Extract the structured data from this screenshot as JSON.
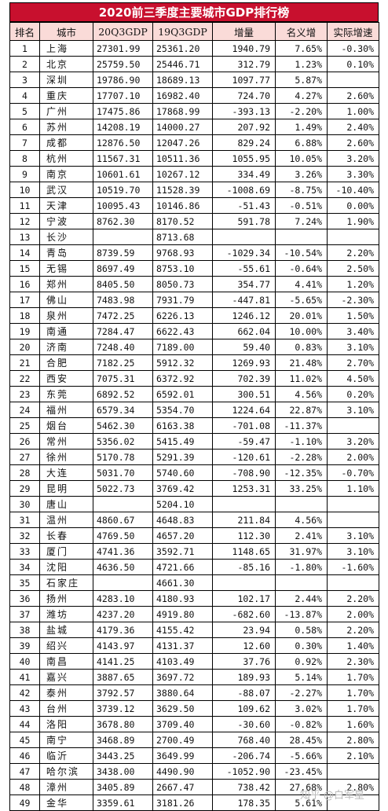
{
  "title": "2020前三季度主要城市GDP排行榜",
  "headers": [
    "排名",
    "城市",
    "20Q3GDP",
    "19Q3GDP",
    "增量",
    "名义增",
    "实际增速"
  ],
  "rows": [
    [
      "1",
      "上海",
      "27301.99",
      "25361.20",
      "1940.79",
      "7.65%",
      "-0.30%"
    ],
    [
      "2",
      "北京",
      "25759.50",
      "25446.71",
      "312.79",
      "1.23%",
      "0.10%"
    ],
    [
      "3",
      "深圳",
      "19786.90",
      "18689.13",
      "1097.77",
      "5.87%",
      ""
    ],
    [
      "4",
      "重庆",
      "17707.10",
      "16982.40",
      "724.70",
      "4.27%",
      "2.60%"
    ],
    [
      "5",
      "广州",
      "17475.86",
      "17868.99",
      "-393.13",
      "-2.20%",
      "1.00%"
    ],
    [
      "6",
      "苏州",
      "14208.19",
      "14000.27",
      "207.92",
      "1.49%",
      "2.40%"
    ],
    [
      "7",
      "成都",
      "12876.50",
      "12047.26",
      "829.24",
      "6.88%",
      "2.60%"
    ],
    [
      "8",
      "杭州",
      "11567.31",
      "10511.36",
      "1055.95",
      "10.05%",
      "3.20%"
    ],
    [
      "9",
      "南京",
      "10601.61",
      "10267.12",
      "334.49",
      "3.26%",
      "3.30%"
    ],
    [
      "10",
      "武汉",
      "10519.70",
      "11528.39",
      "-1008.69",
      "-8.75%",
      "-10.40%"
    ],
    [
      "11",
      "天津",
      "10095.43",
      "10146.86",
      "-51.43",
      "-0.51%",
      "0.00%"
    ],
    [
      "12",
      "宁波",
      "8762.30",
      "8170.52",
      "591.78",
      "7.24%",
      "1.90%"
    ],
    [
      "13",
      "长沙",
      "",
      "8713.68",
      "",
      "",
      ""
    ],
    [
      "14",
      "青岛",
      "8739.59",
      "9768.93",
      "-1029.34",
      "-10.54%",
      "2.20%"
    ],
    [
      "15",
      "无锡",
      "8697.49",
      "8753.10",
      "-55.61",
      "-0.64%",
      "2.50%"
    ],
    [
      "16",
      "郑州",
      "8405.50",
      "8050.73",
      "354.77",
      "4.41%",
      "1.20%"
    ],
    [
      "17",
      "佛山",
      "7483.98",
      "7931.79",
      "-447.81",
      "-5.65%",
      "-2.30%"
    ],
    [
      "18",
      "泉州",
      "7472.25",
      "6226.13",
      "1246.12",
      "20.01%",
      "1.50%"
    ],
    [
      "19",
      "南通",
      "7284.47",
      "6622.43",
      "662.04",
      "10.00%",
      "3.40%"
    ],
    [
      "20",
      "济南",
      "7248.40",
      "7189.00",
      "59.40",
      "0.83%",
      "3.10%"
    ],
    [
      "21",
      "合肥",
      "7182.25",
      "5912.32",
      "1269.93",
      "21.48%",
      "2.70%"
    ],
    [
      "22",
      "西安",
      "7075.31",
      "6372.92",
      "702.39",
      "11.02%",
      "4.50%"
    ],
    [
      "23",
      "东莞",
      "6892.52",
      "6592.01",
      "300.51",
      "4.56%",
      "0.20%"
    ],
    [
      "24",
      "福州",
      "6579.34",
      "5354.70",
      "1224.64",
      "22.87%",
      "3.10%"
    ],
    [
      "25",
      "烟台",
      "5462.30",
      "6163.38",
      "-701.08",
      "-11.37%",
      ""
    ],
    [
      "26",
      "常州",
      "5356.02",
      "5415.49",
      "-59.47",
      "-1.10%",
      "3.20%"
    ],
    [
      "27",
      "徐州",
      "5170.78",
      "5291.39",
      "-120.61",
      "-2.28%",
      "2.00%"
    ],
    [
      "28",
      "大连",
      "5031.70",
      "5740.60",
      "-708.90",
      "-12.35%",
      "-0.70%"
    ],
    [
      "29",
      "昆明",
      "5022.73",
      "3769.42",
      "1253.31",
      "33.25%",
      "1.10%"
    ],
    [
      "30",
      "唐山",
      "",
      "5204.10",
      "",
      "",
      ""
    ],
    [
      "31",
      "温州",
      "4860.67",
      "4648.83",
      "211.84",
      "4.56%",
      ""
    ],
    [
      "32",
      "长春",
      "4769.50",
      "4657.20",
      "112.30",
      "2.41%",
      "3.10%"
    ],
    [
      "33",
      "厦门",
      "4741.36",
      "3592.71",
      "1148.65",
      "31.97%",
      "3.10%"
    ],
    [
      "34",
      "沈阳",
      "4636.50",
      "4721.66",
      "-85.16",
      "-1.80%",
      "-1.60%"
    ],
    [
      "35",
      "石家庄",
      "",
      "4661.30",
      "",
      "",
      ""
    ],
    [
      "36",
      "扬州",
      "4283.10",
      "4180.93",
      "102.17",
      "2.44%",
      "2.20%"
    ],
    [
      "37",
      "潍坊",
      "4237.20",
      "4919.80",
      "-682.60",
      "-13.87%",
      "2.00%"
    ],
    [
      "38",
      "盐城",
      "4179.36",
      "4155.42",
      "23.94",
      "0.58%",
      "2.20%"
    ],
    [
      "39",
      "绍兴",
      "4143.97",
      "4131.37",
      "12.60",
      "0.30%",
      "1.40%"
    ],
    [
      "40",
      "南昌",
      "4141.25",
      "4103.49",
      "37.76",
      "0.92%",
      "2.30%"
    ],
    [
      "41",
      "嘉兴",
      "3887.65",
      "3697.72",
      "189.93",
      "5.14%",
      "1.70%"
    ],
    [
      "42",
      "泰州",
      "3792.57",
      "3880.64",
      "-88.07",
      "-2.27%",
      "1.70%"
    ],
    [
      "43",
      "台州",
      "3739.12",
      "3629.50",
      "109.62",
      "3.02%",
      "1.70%"
    ],
    [
      "44",
      "洛阳",
      "3678.80",
      "3709.40",
      "-30.60",
      "-0.82%",
      "1.60%"
    ],
    [
      "45",
      "南宁",
      "3468.89",
      "2700.49",
      "768.40",
      "28.45%",
      "2.80%"
    ],
    [
      "46",
      "临沂",
      "3443.25",
      "3649.99",
      "-206.74",
      "-5.66%",
      "2.10%"
    ],
    [
      "47",
      "哈尔滨",
      "3438.00",
      "4490.90",
      "-1052.90",
      "-23.45%",
      ""
    ],
    [
      "48",
      "漳州",
      "3405.89",
      "2667.47",
      "738.42",
      "27.68%",
      "2.80%"
    ],
    [
      "49",
      "金华",
      "3359.61",
      "3181.26",
      "178.35",
      "5.61%",
      ""
    ]
  ],
  "watermark": "知乎 @白军星",
  "colors": {
    "title_bg": "#c8102e",
    "header_bg": "#fadbd8"
  }
}
